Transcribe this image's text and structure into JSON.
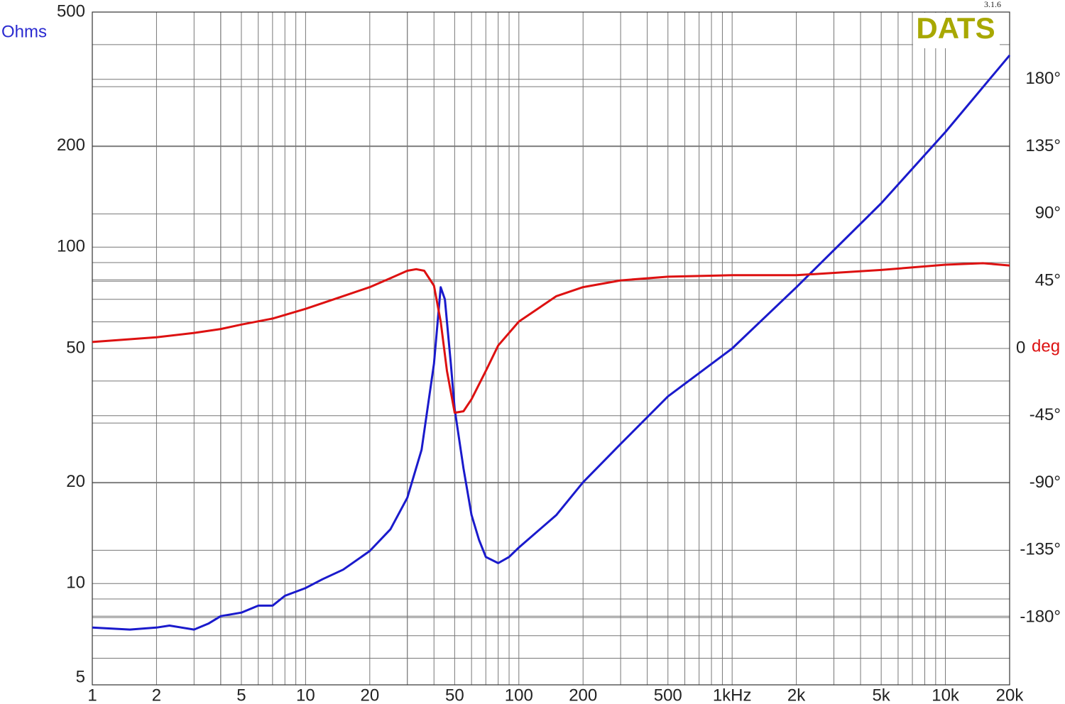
{
  "chart_data": {
    "type": "line",
    "watermark": "DATS",
    "version": "3.1.6",
    "ylabel": "Ohms",
    "y2label": "deg",
    "xscale": "log",
    "yscale": "log",
    "grid": true,
    "xlim": [
      1,
      20000
    ],
    "xticks": [
      1,
      2,
      5,
      10,
      20,
      50,
      100,
      200,
      500,
      {
        "value": 1000,
        "label": "1kHz"
      },
      {
        "value": 2000,
        "label": "2k"
      },
      {
        "value": 5000,
        "label": "5k"
      },
      {
        "value": 10000,
        "label": "10k"
      },
      {
        "value": 20000,
        "label": "20k"
      }
    ],
    "xminorticks": [
      3,
      4,
      6,
      7,
      8,
      9,
      30,
      40,
      60,
      70,
      80,
      90,
      300,
      400,
      600,
      700,
      800,
      900,
      3000,
      4000,
      6000,
      7000,
      8000,
      9000,
      30,
      4
    ],
    "ylim": [
      5,
      500
    ],
    "yticks": [
      5,
      10,
      20,
      50,
      100,
      200,
      500
    ],
    "yminorticks": [
      6,
      7,
      8,
      9,
      30,
      40,
      60,
      70,
      80,
      90,
      300,
      400
    ],
    "y2lim": [
      -225,
      225
    ],
    "y2ticks": [
      {
        "value": -180,
        "label": "-180°"
      },
      {
        "value": -135,
        "label": "-135°"
      },
      {
        "value": -90,
        "label": "-90°"
      },
      {
        "value": -45,
        "label": "-45°"
      },
      0,
      {
        "value": 45,
        "label": "45°"
      },
      {
        "value": 90,
        "label": "90°"
      },
      {
        "value": 135,
        "label": "135°"
      },
      {
        "value": 180,
        "label": "180°"
      }
    ],
    "series": [
      {
        "color": "#1a1acc",
        "axis": "y",
        "x": [
          1,
          1.5,
          2,
          2.3,
          3,
          3.5,
          4,
          5,
          6,
          7,
          8,
          10,
          12,
          15,
          20,
          25,
          30,
          35,
          40,
          43,
          45,
          48,
          50,
          55,
          60,
          65,
          70,
          80,
          90,
          100,
          150,
          200,
          300,
          500,
          1000,
          2000,
          5000,
          10000,
          20000
        ],
        "values": [
          7.4,
          7.3,
          7.4,
          7.5,
          7.3,
          7.6,
          8.0,
          8.2,
          8.6,
          8.6,
          9.2,
          9.7,
          10.3,
          11.0,
          12.5,
          14.5,
          18,
          25,
          45,
          76,
          70,
          45,
          33,
          22,
          16,
          13.5,
          12,
          11.5,
          12,
          12.8,
          16,
          20,
          26,
          36,
          50,
          76,
          135,
          220,
          372
        ]
      },
      {
        "color": "#dd1111",
        "axis": "y2",
        "x": [
          1,
          2,
          3,
          4,
          5,
          7,
          10,
          15,
          20,
          25,
          30,
          33,
          36,
          40,
          43,
          46,
          50,
          55,
          60,
          70,
          80,
          100,
          150,
          200,
          300,
          500,
          1000,
          2000,
          5000,
          10000,
          15000,
          20000
        ],
        "values": [
          4.3,
          7.5,
          10.4,
          13,
          16,
          20,
          26.5,
          35,
          41,
          47,
          52,
          53,
          52,
          42,
          18,
          -15,
          -43,
          -42,
          -34,
          -15,
          2,
          18,
          35,
          41,
          45.5,
          48,
          49,
          49,
          52.5,
          56,
          57,
          55.5
        ]
      }
    ]
  }
}
